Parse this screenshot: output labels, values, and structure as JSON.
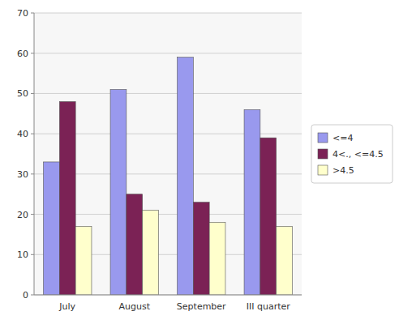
{
  "chart_data": {
    "type": "bar",
    "categories": [
      "July",
      "August",
      "September",
      "III quarter"
    ],
    "series": [
      {
        "name": "<=4",
        "values": [
          33,
          51,
          59,
          46
        ],
        "color": "#9999EE"
      },
      {
        "name": "4<., <=4.5",
        "values": [
          48,
          25,
          23,
          39
        ],
        "color": "#7B2255"
      },
      {
        "name": ">4.5",
        "values": [
          17,
          21,
          18,
          17
        ],
        "color": "#FFFFCC"
      }
    ],
    "ylim": [
      0,
      70
    ],
    "yticks": [
      0,
      10,
      20,
      30,
      40,
      50,
      60,
      70
    ],
    "grid": true,
    "legend": "right"
  }
}
